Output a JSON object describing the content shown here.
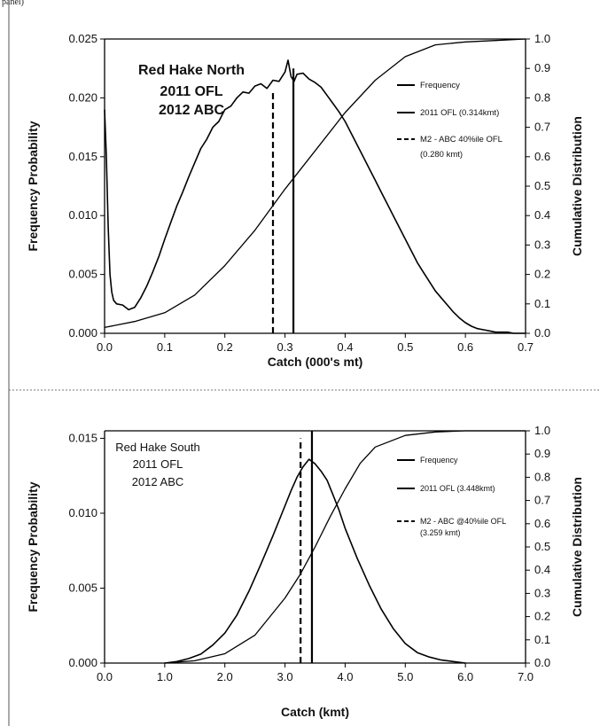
{
  "page": {
    "top_label": "panel)"
  },
  "chart_data": [
    {
      "type": "line",
      "title_lines": [
        "Red Hake North",
        "2011  OFL",
        "2012 ABC"
      ],
      "xlabel": "Catch (000's mt)",
      "ylabel": "Frequency Probability",
      "y2label": "Cumulative Distribution",
      "xlim": [
        0,
        0.7
      ],
      "ylim": [
        0,
        0.025
      ],
      "y2lim": [
        0,
        1.0
      ],
      "x_ticks": [
        "0.0",
        "0.1",
        "0.2",
        "0.3",
        "0.4",
        "0.5",
        "0.6",
        "0.7"
      ],
      "y_ticks": [
        "0.000",
        "0.005",
        "0.010",
        "0.015",
        "0.020",
        "0.025"
      ],
      "y2_ticks": [
        "0.0",
        "0.1",
        "0.2",
        "0.3",
        "0.4",
        "0.5",
        "0.6",
        "0.7",
        "0.8",
        "0.9",
        "1.0"
      ],
      "legend": [
        {
          "label": "Frequency",
          "style": "solid"
        },
        {
          "label": "2011 OFL (0.314kmt)",
          "style": "solid"
        },
        {
          "label": "M2 - ABC 40%ile OFL (0.280 kmt)",
          "style": "dashed"
        }
      ],
      "vlines": [
        {
          "x": 0.314,
          "style": "solid",
          "y_top": 0.0225
        },
        {
          "x": 0.28,
          "style": "dashed",
          "y_top": 0.0205
        }
      ],
      "series": [
        {
          "axis": "left",
          "x": [
            0.0,
            0.003,
            0.006,
            0.009,
            0.012,
            0.015,
            0.02,
            0.03,
            0.04,
            0.05,
            0.06,
            0.07,
            0.08,
            0.09,
            0.1,
            0.11,
            0.12,
            0.13,
            0.14,
            0.15,
            0.16,
            0.17,
            0.18,
            0.19,
            0.2,
            0.21,
            0.22,
            0.23,
            0.24,
            0.25,
            0.26,
            0.27,
            0.28,
            0.29,
            0.3,
            0.305,
            0.31,
            0.315,
            0.32,
            0.33,
            0.34,
            0.35,
            0.36,
            0.37,
            0.38,
            0.39,
            0.4,
            0.41,
            0.42,
            0.43,
            0.44,
            0.45,
            0.46,
            0.47,
            0.48,
            0.49,
            0.5,
            0.51,
            0.52,
            0.53,
            0.54,
            0.55,
            0.56,
            0.57,
            0.58,
            0.59,
            0.6,
            0.61,
            0.62,
            0.63,
            0.64,
            0.65,
            0.66,
            0.67,
            0.68,
            0.69,
            0.7
          ],
          "y": [
            0.019,
            0.015,
            0.009,
            0.005,
            0.0035,
            0.0028,
            0.0025,
            0.0024,
            0.002,
            0.0022,
            0.003,
            0.004,
            0.0052,
            0.0065,
            0.008,
            0.0094,
            0.0108,
            0.012,
            0.0133,
            0.0145,
            0.0157,
            0.0165,
            0.0175,
            0.018,
            0.019,
            0.0193,
            0.02,
            0.0205,
            0.0204,
            0.021,
            0.0212,
            0.0208,
            0.0215,
            0.0214,
            0.0222,
            0.0232,
            0.0218,
            0.0214,
            0.022,
            0.0221,
            0.0216,
            0.0213,
            0.0209,
            0.0202,
            0.0195,
            0.0188,
            0.018,
            0.017,
            0.016,
            0.015,
            0.014,
            0.013,
            0.012,
            0.011,
            0.01,
            0.009,
            0.008,
            0.007,
            0.006,
            0.0052,
            0.0044,
            0.0036,
            0.003,
            0.0024,
            0.0018,
            0.0013,
            0.0009,
            0.0006,
            0.0004,
            0.0003,
            0.0002,
            0.0001,
            0.0001,
            0.0001,
            0.0,
            0.0,
            0.0
          ]
        },
        {
          "axis": "right",
          "x": [
            0.0,
            0.05,
            0.1,
            0.15,
            0.2,
            0.25,
            0.3,
            0.35,
            0.4,
            0.45,
            0.5,
            0.55,
            0.6,
            0.65,
            0.7
          ],
          "y": [
            0.02,
            0.04,
            0.07,
            0.13,
            0.23,
            0.35,
            0.49,
            0.62,
            0.75,
            0.86,
            0.94,
            0.98,
            0.99,
            0.995,
            1.0
          ]
        }
      ]
    },
    {
      "type": "line",
      "title_lines": [
        "Red Hake South",
        "2011 OFL",
        "2012 ABC"
      ],
      "xlabel": "Catch (kmt)",
      "ylabel": "Frequency Probability",
      "y2label": "Cumulative Distribution",
      "xlim": [
        0,
        7.0
      ],
      "ylim": [
        0,
        0.0155
      ],
      "y2lim": [
        0,
        1.0
      ],
      "y_tick_values": [
        0,
        0.005,
        0.01,
        0.015
      ],
      "x_ticks": [
        "0.0",
        "1.0",
        "2.0",
        "3.0",
        "4.0",
        "5.0",
        "6.0",
        "7.0"
      ],
      "y_ticks": [
        "0.000",
        "0.005",
        "0.010",
        "0.015"
      ],
      "y2_ticks": [
        "0.0",
        "0.1",
        "0.2",
        "0.3",
        "0.4",
        "0.5",
        "0.6",
        "0.7",
        "0.8",
        "0.9",
        "1.0"
      ],
      "legend": [
        {
          "label": "Frequency",
          "style": "solid"
        },
        {
          "label": "2011 OFL (3.448kmt)",
          "style": "solid"
        },
        {
          "label": "M2 - ABC @40%ile OFL (3.259 kmt)",
          "style": "dashed"
        }
      ],
      "vlines": [
        {
          "x": 3.448,
          "style": "solid",
          "y_top": 0.0155
        },
        {
          "x": 3.259,
          "style": "dashed",
          "y_top": 0.015
        }
      ],
      "series": [
        {
          "axis": "left",
          "x": [
            1.0,
            1.2,
            1.4,
            1.6,
            1.8,
            2.0,
            2.2,
            2.4,
            2.6,
            2.8,
            3.0,
            3.1,
            3.2,
            3.3,
            3.4,
            3.5,
            3.6,
            3.7,
            3.8,
            3.9,
            4.0,
            4.2,
            4.4,
            4.6,
            4.8,
            5.0,
            5.2,
            5.4,
            5.6,
            5.8,
            6.0
          ],
          "y": [
            0.0,
            0.0001,
            0.0003,
            0.0006,
            0.0012,
            0.002,
            0.0032,
            0.0048,
            0.0066,
            0.0085,
            0.0105,
            0.0115,
            0.0124,
            0.0131,
            0.0136,
            0.0133,
            0.0128,
            0.0122,
            0.0112,
            0.0102,
            0.009,
            0.007,
            0.0052,
            0.0036,
            0.0023,
            0.0013,
            0.0007,
            0.0004,
            0.0002,
            0.0001,
            0.0
          ]
        },
        {
          "axis": "right",
          "x": [
            1.0,
            1.5,
            2.0,
            2.5,
            3.0,
            3.25,
            3.5,
            3.75,
            4.0,
            4.25,
            4.5,
            5.0,
            5.5,
            6.0,
            6.5,
            7.0
          ],
          "y": [
            0.0,
            0.01,
            0.04,
            0.12,
            0.28,
            0.38,
            0.5,
            0.63,
            0.75,
            0.86,
            0.93,
            0.98,
            0.995,
            1.0,
            1.0,
            1.0
          ]
        }
      ]
    }
  ]
}
